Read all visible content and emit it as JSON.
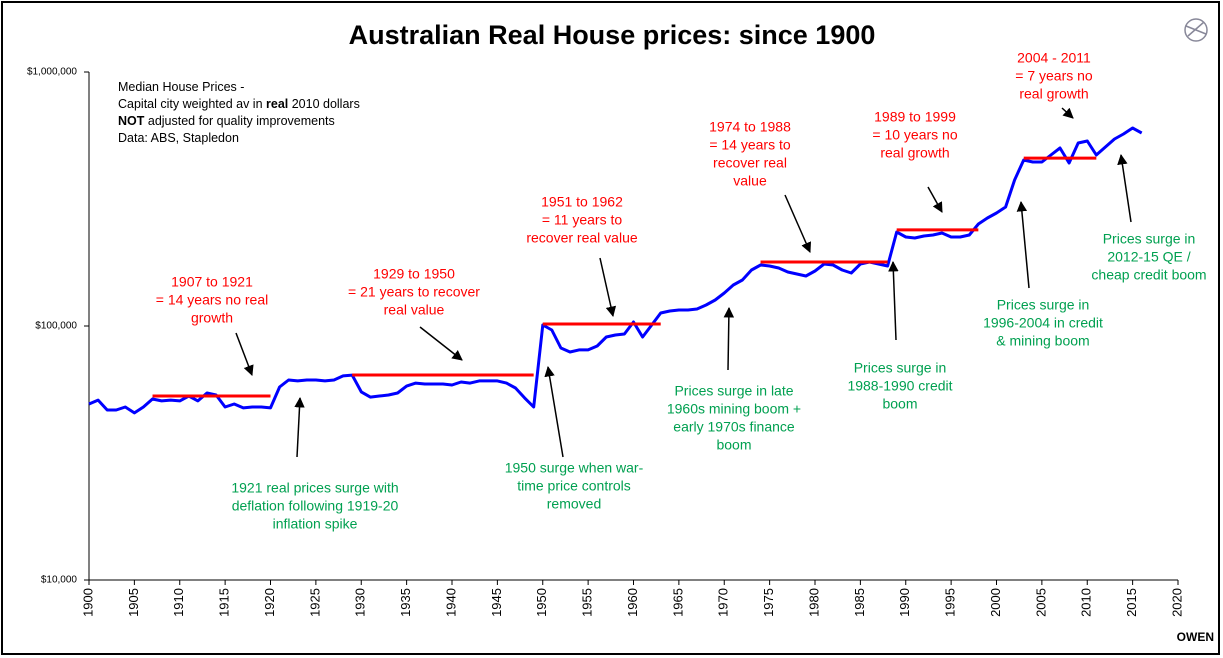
{
  "chart_data": {
    "type": "line",
    "title": "Australian Real House prices: since 1900",
    "note": [
      [
        "Median House Prices -"
      ],
      [
        "Capital city weighted av in ",
        "real",
        " 2010 dollars"
      ],
      [
        "NOT",
        " adjusted  for quality improvements"
      ],
      [
        "Data: ABS, Stapledon"
      ]
    ],
    "footer": "OWEN",
    "color": "#0000ff",
    "log_y": true,
    "x": [
      1900,
      1901,
      1902,
      1903,
      1904,
      1905,
      1906,
      1907,
      1908,
      1909,
      1910,
      1911,
      1912,
      1913,
      1914,
      1915,
      1916,
      1917,
      1918,
      1919,
      1920,
      1921,
      1922,
      1923,
      1924,
      1925,
      1926,
      1927,
      1928,
      1929,
      1930,
      1931,
      1932,
      1933,
      1934,
      1935,
      1936,
      1937,
      1938,
      1939,
      1940,
      1941,
      1942,
      1943,
      1944,
      1945,
      1946,
      1947,
      1948,
      1949,
      1950,
      1951,
      1952,
      1953,
      1954,
      1955,
      1956,
      1957,
      1958,
      1959,
      1960,
      1961,
      1962,
      1963,
      1964,
      1965,
      1966,
      1967,
      1968,
      1969,
      1970,
      1971,
      1972,
      1973,
      1974,
      1975,
      1976,
      1977,
      1978,
      1979,
      1980,
      1981,
      1982,
      1983,
      1984,
      1985,
      1986,
      1987,
      1988,
      1989,
      1990,
      1991,
      1992,
      1993,
      1994,
      1995,
      1996,
      1997,
      1998,
      1999,
      2000,
      2001,
      2002,
      2003,
      2004,
      2005,
      2006,
      2007,
      2008,
      2009,
      2010,
      2011,
      2012,
      2013,
      2014,
      2015,
      2016
    ],
    "values": [
      49300,
      51100,
      46700,
      46700,
      48000,
      45500,
      48000,
      51600,
      50700,
      51100,
      50700,
      53000,
      50700,
      54500,
      53500,
      48000,
      49300,
      47600,
      48000,
      48000,
      47600,
      57500,
      61300,
      60800,
      61300,
      61300,
      60800,
      61300,
      63600,
      64100,
      55000,
      52500,
      53000,
      53500,
      54500,
      58000,
      59600,
      59100,
      59100,
      59100,
      58600,
      60200,
      59600,
      60800,
      60800,
      60800,
      59600,
      57000,
      52100,
      48000,
      100900,
      96400,
      81900,
      79000,
      80500,
      80500,
      83400,
      90500,
      92200,
      93000,
      103700,
      90500,
      100900,
      112500,
      114600,
      115600,
      115600,
      116700,
      121000,
      126600,
      134900,
      145000,
      151800,
      166200,
      173900,
      172300,
      169200,
      163200,
      160200,
      157300,
      164600,
      175400,
      173900,
      166200,
      161700,
      175400,
      178600,
      175400,
      172300,
      234500,
      224000,
      222100,
      226100,
      228200,
      232300,
      224000,
      224000,
      228200,
      252100,
      266200,
      278600,
      294100,
      375600,
      450300,
      442200,
      442200,
      471200,
      502200,
      438200,
      525400,
      535000,
      471200,
      506600,
      544800,
      570000,
      601800,
      575200
    ],
    "reference_color": "#ff0000",
    "reference_lines": [
      {
        "x": [
          1907,
          1920
        ],
        "value": 53000
      },
      {
        "x": [
          1929,
          1949
        ],
        "value": 64100
      },
      {
        "x": [
          1950,
          1963
        ],
        "value": 101800
      },
      {
        "x": [
          1974,
          1988
        ],
        "value": 178600
      },
      {
        "x": [
          1989,
          1998
        ],
        "value": 239000
      },
      {
        "x": [
          2003,
          2011
        ],
        "value": 458000
      }
    ],
    "annotations": [
      {
        "color": "#ff0000",
        "lines": [
          "1907 to 1921",
          "= 14 years  no real",
          "growth"
        ]
      },
      {
        "color": "#ff0000",
        "lines": [
          "1929 to 1950",
          "= 21 years to recover",
          "real value"
        ]
      },
      {
        "color": "#ff0000",
        "lines": [
          "1951 to 1962",
          "= 11 years to",
          "recover real value"
        ]
      },
      {
        "color": "#ff0000",
        "lines": [
          "1974 to 1988",
          "= 14 years to",
          "recover real",
          "value"
        ]
      },
      {
        "color": "#ff0000",
        "lines": [
          "1989 to 1999",
          "= 10 years no",
          "real growth"
        ]
      },
      {
        "color": "#ff0000",
        "lines": [
          "2004 - 2011",
          "= 7 years no",
          "real growth"
        ]
      },
      {
        "color": "#00a050",
        "lines": [
          "1921 real prices surge with",
          "deflation following 1919-20",
          "inflation spike"
        ]
      },
      {
        "color": "#00a050",
        "lines": [
          "1950 surge when war-",
          "time price controls",
          "removed"
        ]
      },
      {
        "color": "#00a050",
        "lines": [
          "Prices surge in late",
          "1960s mining boom +",
          "early 1970s  finance",
          "boom"
        ]
      },
      {
        "color": "#00a050",
        "lines": [
          "Prices surge in",
          "1988-1990 credit",
          "boom"
        ]
      },
      {
        "color": "#00a050",
        "lines": [
          "Prices surge in",
          "1996-2004 in credit",
          "& mining boom"
        ]
      },
      {
        "color": "#00a050",
        "lines": [
          "Prices surge in",
          "2012-15 QE /",
          "cheap credit boom"
        ]
      }
    ],
    "xlim": [
      1900,
      2020
    ],
    "xticks": [
      1900,
      1905,
      1910,
      1915,
      1920,
      1925,
      1930,
      1935,
      1940,
      1945,
      1950,
      1955,
      1960,
      1965,
      1970,
      1975,
      1980,
      1985,
      1990,
      1995,
      2000,
      2005,
      2010,
      2015,
      2020
    ],
    "ylim": [
      10000,
      1000000
    ],
    "yticks": [
      {
        "value": 10000,
        "label": "$10,000"
      },
      {
        "value": 100000,
        "label": "$100,000"
      },
      {
        "value": 1000000,
        "label": "$1,000,000"
      }
    ]
  }
}
